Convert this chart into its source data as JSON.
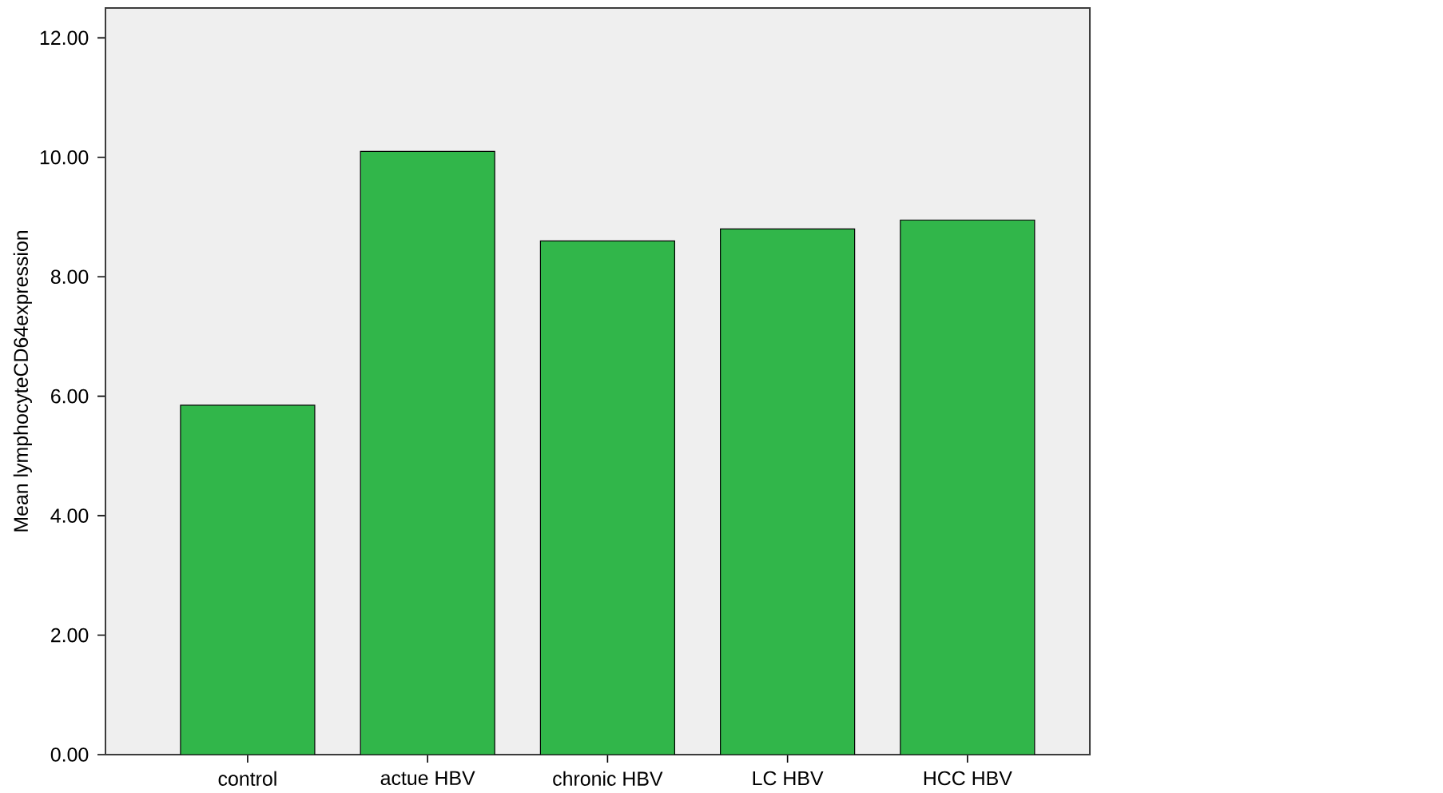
{
  "chart_data": {
    "type": "bar",
    "ylabel": "Mean lymphocyteCD64expression",
    "categories": [
      "control",
      "actue HBV",
      "chronic HBV",
      "LC  HBV",
      "HCC  HBV"
    ],
    "values": [
      5.85,
      10.1,
      8.6,
      8.8,
      8.95
    ],
    "color": "#31b64a",
    "ylim": [
      0,
      12.5
    ],
    "yticks": [
      {
        "value": 0,
        "label": "0.00"
      },
      {
        "value": 2,
        "label": "2.00"
      },
      {
        "value": 4,
        "label": "4.00"
      },
      {
        "value": 6,
        "label": "6.00"
      },
      {
        "value": 8,
        "label": "8.00"
      },
      {
        "value": 10,
        "label": "10.00"
      },
      {
        "value": 12,
        "label": "12.00"
      }
    ],
    "tick_labels": "xy"
  }
}
